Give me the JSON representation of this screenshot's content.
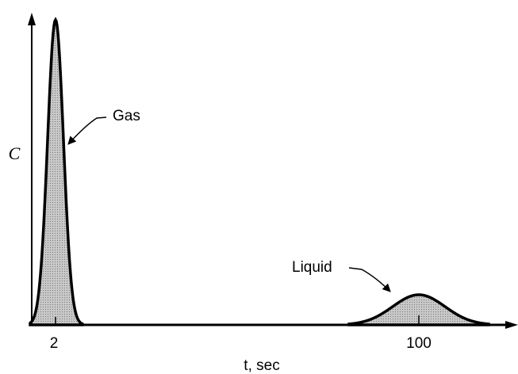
{
  "y_label": "C",
  "x_label": "t, sec",
  "x_ticks": [
    "2",
    "100"
  ],
  "peaks": [
    {
      "label": "Gas"
    },
    {
      "label": "Liquid"
    }
  ]
}
